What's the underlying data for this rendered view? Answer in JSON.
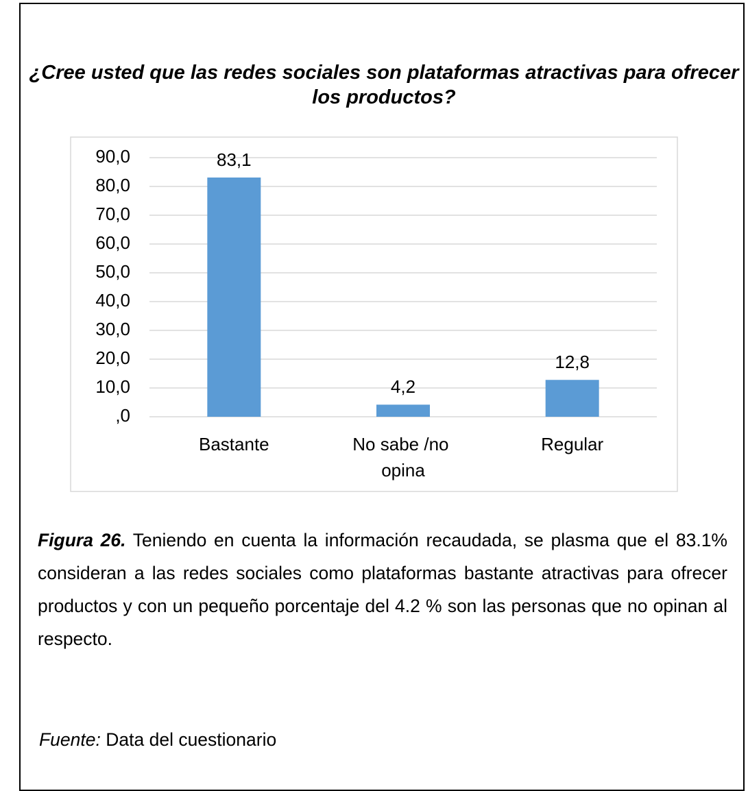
{
  "chart_data": {
    "type": "bar",
    "title": "¿Cree usted que las redes sociales son plataformas atractivas para ofrecer los productos?",
    "categories": [
      "Bastante",
      "No sabe /no opina",
      "Regular"
    ],
    "values": [
      83.1,
      4.2,
      12.8
    ],
    "value_labels": [
      "83,1",
      "4,2",
      "12,8"
    ],
    "color": "#5b9bd5",
    "ylim": [
      0,
      90
    ],
    "yticks": [
      {
        "value": 0,
        "label": ",0"
      },
      {
        "value": 10,
        "label": "10,0"
      },
      {
        "value": 20,
        "label": "20,0"
      },
      {
        "value": 30,
        "label": "30,0"
      },
      {
        "value": 40,
        "label": "40,0"
      },
      {
        "value": 50,
        "label": "50,0"
      },
      {
        "value": 60,
        "label": "60,0"
      },
      {
        "value": 70,
        "label": "70,0"
      },
      {
        "value": 80,
        "label": "80,0"
      },
      {
        "value": 90,
        "label": "90,0"
      }
    ],
    "grid": true
  },
  "caption": {
    "label": "Figura 26.",
    "text": "Teniendo en cuenta la información recaudada, se plasma que el 83.1% consideran a las redes sociales como plataformas bastante atractivas para ofrecer productos y con un pequeño porcentaje del 4.2 % son las personas que no opinan al respecto."
  },
  "source": {
    "label": "Fuente:",
    "text": "Data del cuestionario"
  }
}
